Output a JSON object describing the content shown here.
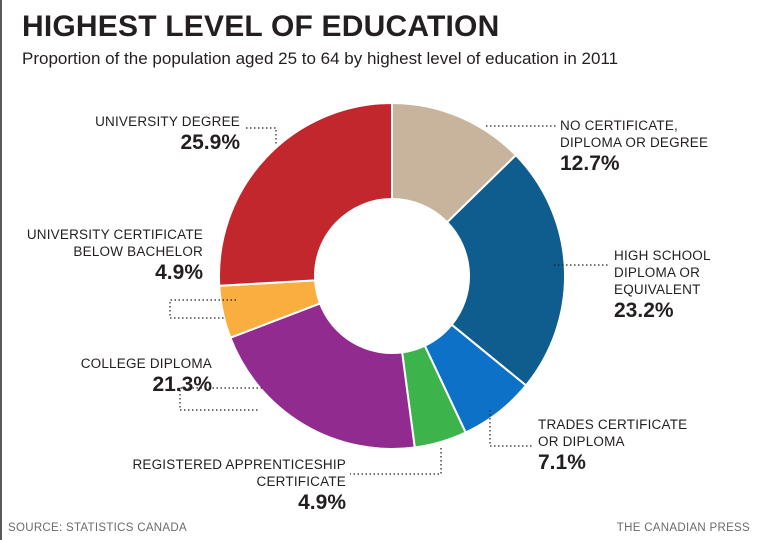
{
  "chart_data": {
    "type": "pie",
    "title": "HIGHEST LEVEL OF EDUCATION",
    "subtitle": "Proportion of the population aged 25 to 64 by highest level of education in 2011",
    "donut": true,
    "categories": [
      "NO CERTIFICATE, DIPLOMA OR DEGREE",
      "HIGH SCHOOL DIPLOMA OR EQUIVALENT",
      "TRADES CERTIFICATE OR DIPLOMA",
      "REGISTERED APPRENTICESHIP CERTIFICATE",
      "COLLEGE DIPLOMA",
      "UNIVERSITY CERTIFICATE BELOW BACHELOR",
      "UNIVERSITY DEGREE"
    ],
    "values": [
      12.7,
      23.2,
      7.1,
      4.9,
      21.3,
      4.9,
      25.9
    ],
    "colors": [
      "#c8b49c",
      "#0f5c8f",
      "#0d72c7",
      "#3db44b",
      "#922b8f",
      "#f9ae3f",
      "#c1272d"
    ],
    "value_labels": [
      "12.7%",
      "23.2%",
      "7.1%",
      "4.9%",
      "21.3%",
      "4.9%",
      "25.9%"
    ],
    "label_lines": [
      [
        "NO CERTIFICATE,",
        "DIPLOMA OR DEGREE"
      ],
      [
        "HIGH SCHOOL",
        "DIPLOMA OR",
        "EQUIVALENT"
      ],
      [
        "TRADES CERTIFICATE",
        "OR DIPLOMA"
      ],
      [
        "REGISTERED APPRENTICESHIP",
        "CERTIFICATE"
      ],
      [
        "COLLEGE DIPLOMA"
      ],
      [
        "UNIVERSITY CERTIFICATE",
        "BELOW BACHELOR"
      ],
      [
        "UNIVERSITY DEGREE"
      ]
    ]
  },
  "footer": {
    "source": "SOURCE: STATISTICS CANADA",
    "credit": "THE CANADIAN PRESS"
  }
}
